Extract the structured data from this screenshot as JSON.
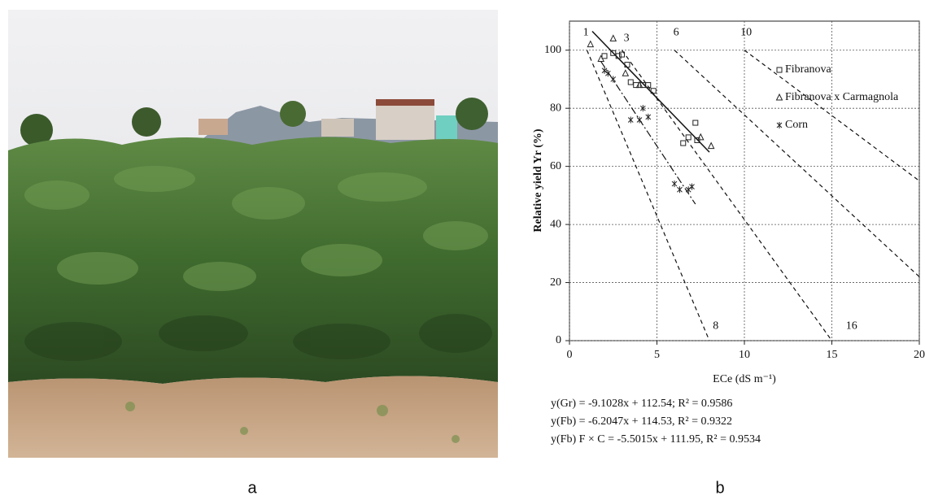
{
  "photo": {
    "label": "a"
  },
  "chart_data": {
    "type": "scatter",
    "panel_label": "b",
    "xlabel": "ECe (dS m⁻¹)",
    "ylabel": "Relative yield Yr (%)",
    "xlim": [
      0,
      20
    ],
    "ylim": [
      0,
      110
    ],
    "xticks": [
      0,
      5,
      10,
      15,
      20
    ],
    "yticks": [
      0,
      20,
      40,
      60,
      80,
      100
    ],
    "grid": true,
    "legend": "upper right",
    "series": [
      {
        "name": "Fibranova",
        "marker": "square",
        "color": "#222",
        "x": [
          2.0,
          2.5,
          2.8,
          3.0,
          3.3,
          3.5,
          3.8,
          4.2,
          4.5,
          4.8,
          6.5,
          6.8,
          7.2,
          7.3
        ],
        "values": [
          98,
          99,
          98,
          98.5,
          95,
          89,
          88,
          88,
          88,
          86,
          68,
          70,
          75,
          69
        ]
      },
      {
        "name": "Fibranova x Carmagnola",
        "marker": "triangle",
        "color": "#222",
        "x": [
          1.2,
          1.8,
          2.5,
          3.2,
          4.0,
          7.5,
          8.1
        ],
        "values": [
          102,
          97,
          104,
          92,
          88,
          70,
          67
        ]
      },
      {
        "name": "Corn",
        "marker": "star",
        "color": "#222",
        "x": [
          2.0,
          2.2,
          2.5,
          3.5,
          4.0,
          4.2,
          4.5,
          6.0,
          6.3,
          6.8,
          7.0
        ],
        "values": [
          93,
          92,
          90,
          76,
          76,
          80,
          77,
          54,
          52,
          52,
          53
        ]
      }
    ],
    "lines": [
      {
        "style": "solid",
        "x": [
          1.3,
          8
        ],
        "values": [
          106.5,
          64.9
        ]
      },
      {
        "style": "dashdot",
        "x": [
          1.8,
          7.2
        ],
        "values": [
          96.1,
          47
        ]
      },
      {
        "style": "dashed",
        "x": [
          1,
          8
        ],
        "values": [
          100,
          0
        ]
      },
      {
        "style": "dashed",
        "x": [
          3,
          15
        ],
        "values": [
          100,
          0
        ]
      },
      {
        "style": "dashed",
        "x": [
          6,
          20
        ],
        "values": [
          100,
          22
        ]
      },
      {
        "style": "dashed",
        "x": [
          10,
          20
        ],
        "values": [
          100,
          55
        ]
      }
    ],
    "annotations": [
      "1",
      "3",
      "6",
      "10",
      "8",
      "16"
    ],
    "equations": [
      "y(Gr) = -9.1028x + 112.54; R² = 0.9586",
      "y(Fb) = -6.2047x + 114.53, R² = 0.9322",
      "y(Fb) F × C = -5.5015x + 111.95, R² = 0.9534"
    ]
  }
}
